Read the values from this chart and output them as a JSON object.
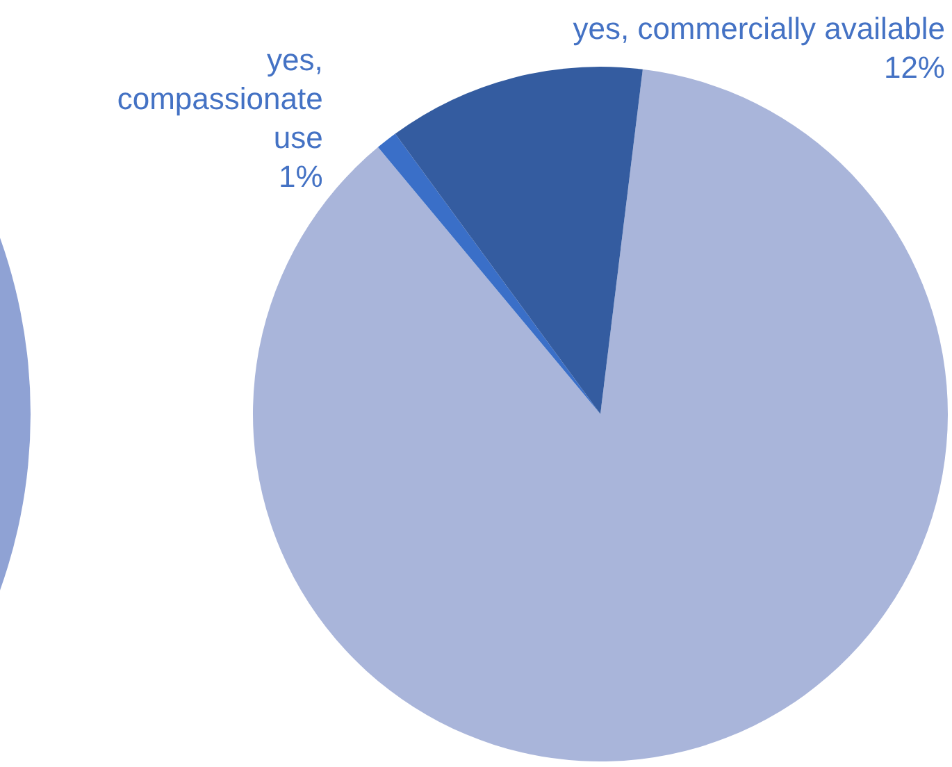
{
  "chart_data": {
    "type": "pie",
    "categories": [
      null,
      "yes, compassionate use",
      "yes, commercially available"
    ],
    "values": [
      87,
      1,
      12
    ],
    "colors": [
      "#a9b5da",
      "#3a6fc8",
      "#345ca0"
    ],
    "value_labels": [
      null,
      "1%",
      "12%"
    ],
    "legend": false
  }
}
